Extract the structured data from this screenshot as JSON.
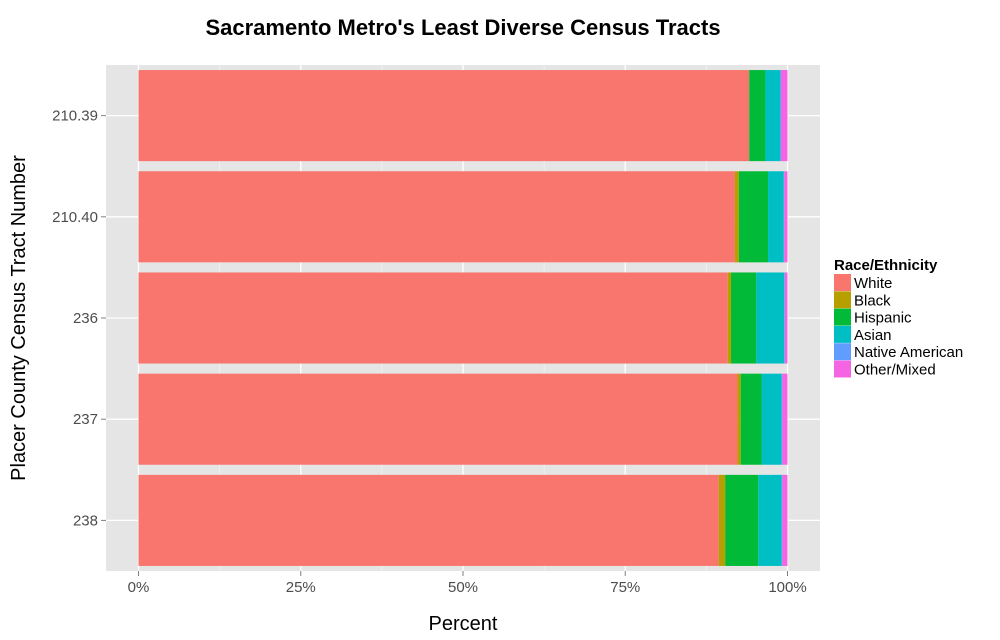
{
  "chart_data": {
    "type": "bar",
    "orientation": "horizontal",
    "stacked": true,
    "title": "Sacramento Metro's Least Diverse Census Tracts",
    "xlabel": "Percent",
    "ylabel": "Placer County Census Tract Number",
    "xlim": [
      0,
      1
    ],
    "x_ticks": [
      "0%",
      "25%",
      "50%",
      "75%",
      "100%"
    ],
    "grid": true,
    "background": "#E5E5E5",
    "legend": {
      "title": "Race/Ethnicity",
      "placement": "right"
    },
    "categories": [
      "210.39",
      "210.40",
      "236",
      "237",
      "238"
    ],
    "series": [
      {
        "name": "White",
        "color": "#F8766D",
        "values": [
          0.941,
          0.919,
          0.908,
          0.923,
          0.894
        ]
      },
      {
        "name": "Black",
        "color": "#B79F00",
        "values": [
          0.0,
          0.006,
          0.005,
          0.005,
          0.01
        ]
      },
      {
        "name": "Hispanic",
        "color": "#00BA38",
        "values": [
          0.025,
          0.045,
          0.039,
          0.032,
          0.051
        ]
      },
      {
        "name": "Asian",
        "color": "#00BFC4",
        "values": [
          0.023,
          0.024,
          0.043,
          0.031,
          0.036
        ]
      },
      {
        "name": "Native American",
        "color": "#619CFF",
        "values": [
          0.001,
          0.001,
          0.001,
          0.001,
          0.001
        ]
      },
      {
        "name": "Other/Mixed",
        "color": "#F564E3",
        "values": [
          0.01,
          0.005,
          0.004,
          0.008,
          0.008
        ]
      }
    ]
  }
}
